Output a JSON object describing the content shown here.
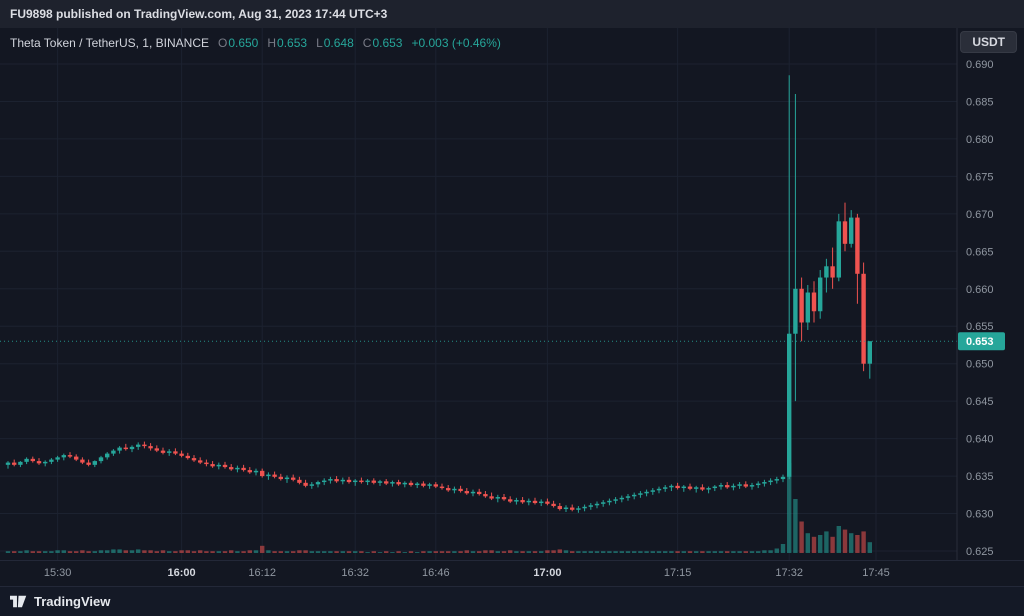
{
  "header": {
    "title": "FU9898 published on TradingView.com, Aug 31, 2023 17:44 UTC+3"
  },
  "legend": {
    "symbol": "Theta Token / TetherUS, 1, BINANCE",
    "ohlc": [
      {
        "label": "O",
        "value": "0.650"
      },
      {
        "label": "H",
        "value": "0.653"
      },
      {
        "label": "L",
        "value": "0.648"
      },
      {
        "label": "C",
        "value": "0.653"
      }
    ],
    "change": "+0.003 (+0.46%)"
  },
  "currency_button": "USDT",
  "footer": {
    "brand": "TradingView"
  },
  "colors": {
    "up": "#26a69a",
    "down": "#ef5350",
    "vol_up": "rgba(38,166,154,0.55)",
    "vol_down": "rgba(239,83,80,0.55)",
    "grid": "#1c2230",
    "axis_text": "#9097a1",
    "border": "#2a2e39",
    "last_price_bg": "#26a69a",
    "last_price_text": "#ffffff"
  },
  "chart_data": {
    "type": "candlestick",
    "title": "Theta Token / TetherUS, 1 minute, BINANCE",
    "interval": "1",
    "exchange": "BINANCE",
    "quote_currency": "USDT",
    "price_axis": {
      "min": 0.625,
      "max": 0.69,
      "step": 0.005
    },
    "price_ticks": [
      "0.690",
      "0.685",
      "0.680",
      "0.675",
      "0.670",
      "0.665",
      "0.660",
      "0.655",
      "0.650",
      "0.645",
      "0.640",
      "0.635",
      "0.630",
      "0.625"
    ],
    "last_price": {
      "value": "0.653",
      "price": 0.653
    },
    "time_labels": [
      {
        "text": "15:30",
        "idx": 8,
        "major": false
      },
      {
        "text": "16:00",
        "idx": 28,
        "major": true
      },
      {
        "text": "16:12",
        "idx": 41,
        "major": false
      },
      {
        "text": "16:32",
        "idx": 56,
        "major": false
      },
      {
        "text": "16:46",
        "idx": 69,
        "major": false
      },
      {
        "text": "17:00",
        "idx": 87,
        "major": true
      },
      {
        "text": "17:15",
        "idx": 108,
        "major": false
      },
      {
        "text": "17:32",
        "idx": 126,
        "major": false
      },
      {
        "text": "17:45",
        "idx": 140,
        "major": false
      }
    ],
    "candle_fields": [
      "open",
      "high",
      "low",
      "close",
      "volume_rel"
    ],
    "candles": [
      [
        0.6365,
        0.637,
        0.636,
        0.6368,
        2
      ],
      [
        0.6368,
        0.6372,
        0.6363,
        0.6365,
        2
      ],
      [
        0.6365,
        0.637,
        0.6362,
        0.6369,
        2
      ],
      [
        0.6369,
        0.6375,
        0.6366,
        0.6373,
        3
      ],
      [
        0.6373,
        0.6376,
        0.6368,
        0.637,
        2
      ],
      [
        0.637,
        0.6374,
        0.6365,
        0.6367,
        2
      ],
      [
        0.6367,
        0.6371,
        0.6363,
        0.6369,
        2
      ],
      [
        0.6369,
        0.6374,
        0.6366,
        0.6372,
        2
      ],
      [
        0.6372,
        0.6377,
        0.6369,
        0.6375,
        3
      ],
      [
        0.6375,
        0.638,
        0.6371,
        0.6378,
        3
      ],
      [
        0.6378,
        0.6382,
        0.6374,
        0.6376,
        2
      ],
      [
        0.6376,
        0.6379,
        0.637,
        0.6372,
        2
      ],
      [
        0.6372,
        0.6375,
        0.6366,
        0.6368,
        3
      ],
      [
        0.6368,
        0.6372,
        0.6363,
        0.6365,
        2
      ],
      [
        0.6365,
        0.6371,
        0.6362,
        0.637,
        2
      ],
      [
        0.637,
        0.6377,
        0.6367,
        0.6375,
        3
      ],
      [
        0.6375,
        0.6382,
        0.6372,
        0.638,
        3
      ],
      [
        0.638,
        0.6386,
        0.6377,
        0.6384,
        4
      ],
      [
        0.6384,
        0.639,
        0.638,
        0.6388,
        4
      ],
      [
        0.6388,
        0.6393,
        0.6384,
        0.6386,
        3
      ],
      [
        0.6386,
        0.6391,
        0.6382,
        0.6389,
        3
      ],
      [
        0.6389,
        0.6395,
        0.6385,
        0.6392,
        4
      ],
      [
        0.6392,
        0.6396,
        0.6387,
        0.639,
        3
      ],
      [
        0.639,
        0.6394,
        0.6384,
        0.6387,
        3
      ],
      [
        0.6387,
        0.6391,
        0.6382,
        0.6384,
        2
      ],
      [
        0.6384,
        0.6388,
        0.6379,
        0.6381,
        3
      ],
      [
        0.6381,
        0.6386,
        0.6377,
        0.6383,
        2
      ],
      [
        0.6383,
        0.6387,
        0.6378,
        0.638,
        2
      ],
      [
        0.638,
        0.6384,
        0.6375,
        0.6377,
        3
      ],
      [
        0.6377,
        0.6381,
        0.6372,
        0.6374,
        3
      ],
      [
        0.6374,
        0.6378,
        0.6369,
        0.6371,
        2
      ],
      [
        0.6371,
        0.6375,
        0.6366,
        0.6368,
        3
      ],
      [
        0.6368,
        0.6372,
        0.6363,
        0.6366,
        2
      ],
      [
        0.6366,
        0.637,
        0.6361,
        0.6363,
        2
      ],
      [
        0.6363,
        0.6368,
        0.6359,
        0.6365,
        2
      ],
      [
        0.6365,
        0.6369,
        0.636,
        0.6362,
        2
      ],
      [
        0.6362,
        0.6366,
        0.6357,
        0.6359,
        3
      ],
      [
        0.6359,
        0.6364,
        0.6355,
        0.6361,
        2
      ],
      [
        0.6361,
        0.6365,
        0.6356,
        0.6358,
        2
      ],
      [
        0.6358,
        0.6362,
        0.6353,
        0.6355,
        3
      ],
      [
        0.6355,
        0.636,
        0.6351,
        0.6357,
        3
      ],
      [
        0.6357,
        0.636,
        0.6348,
        0.635,
        8
      ],
      [
        0.635,
        0.6355,
        0.6345,
        0.6352,
        3
      ],
      [
        0.6352,
        0.6356,
        0.6347,
        0.6349,
        2
      ],
      [
        0.6349,
        0.6353,
        0.6344,
        0.6346,
        2
      ],
      [
        0.6346,
        0.6351,
        0.6341,
        0.6348,
        2
      ],
      [
        0.6348,
        0.6352,
        0.6343,
        0.6345,
        2
      ],
      [
        0.6345,
        0.6349,
        0.6339,
        0.6341,
        3
      ],
      [
        0.6341,
        0.6345,
        0.6335,
        0.6337,
        3
      ],
      [
        0.6337,
        0.6342,
        0.6333,
        0.6339,
        2
      ],
      [
        0.6339,
        0.6344,
        0.6335,
        0.6342,
        2
      ],
      [
        0.6342,
        0.6347,
        0.6338,
        0.6344,
        2
      ],
      [
        0.6344,
        0.6349,
        0.634,
        0.6346,
        2
      ],
      [
        0.6346,
        0.635,
        0.6341,
        0.6343,
        2
      ],
      [
        0.6343,
        0.6348,
        0.6339,
        0.6345,
        2
      ],
      [
        0.6345,
        0.6349,
        0.634,
        0.6342,
        2
      ],
      [
        0.6342,
        0.6346,
        0.6337,
        0.6344,
        2
      ],
      [
        0.6344,
        0.6348,
        0.634,
        0.6342,
        2
      ],
      [
        0.6342,
        0.6346,
        0.6338,
        0.6344,
        1
      ],
      [
        0.6344,
        0.6347,
        0.6339,
        0.6341,
        2
      ],
      [
        0.6341,
        0.6345,
        0.6337,
        0.6343,
        1
      ],
      [
        0.6343,
        0.6346,
        0.6338,
        0.634,
        2
      ],
      [
        0.634,
        0.6344,
        0.6336,
        0.6342,
        1
      ],
      [
        0.6342,
        0.6345,
        0.6337,
        0.6339,
        2
      ],
      [
        0.6339,
        0.6343,
        0.6335,
        0.6341,
        1
      ],
      [
        0.6341,
        0.6344,
        0.6336,
        0.6338,
        2
      ],
      [
        0.6338,
        0.6342,
        0.6334,
        0.634,
        1
      ],
      [
        0.634,
        0.6343,
        0.6335,
        0.6337,
        2
      ],
      [
        0.6337,
        0.6341,
        0.6333,
        0.6339,
        2
      ],
      [
        0.6339,
        0.6342,
        0.6334,
        0.6336,
        2
      ],
      [
        0.6336,
        0.634,
        0.6332,
        0.6334,
        2
      ],
      [
        0.6334,
        0.6338,
        0.6329,
        0.6331,
        2
      ],
      [
        0.6331,
        0.6336,
        0.6327,
        0.6333,
        2
      ],
      [
        0.6333,
        0.6337,
        0.6328,
        0.633,
        2
      ],
      [
        0.633,
        0.6334,
        0.6325,
        0.6327,
        3
      ],
      [
        0.6327,
        0.6332,
        0.6323,
        0.6329,
        2
      ],
      [
        0.6329,
        0.6333,
        0.6324,
        0.6326,
        2
      ],
      [
        0.6326,
        0.633,
        0.6321,
        0.6323,
        3
      ],
      [
        0.6323,
        0.6328,
        0.6318,
        0.632,
        3
      ],
      [
        0.632,
        0.6325,
        0.6315,
        0.6322,
        2
      ],
      [
        0.6322,
        0.6326,
        0.6317,
        0.6319,
        2
      ],
      [
        0.6319,
        0.6323,
        0.6314,
        0.6316,
        3
      ],
      [
        0.6316,
        0.6321,
        0.6312,
        0.6318,
        2
      ],
      [
        0.6318,
        0.6322,
        0.6313,
        0.6315,
        2
      ],
      [
        0.6315,
        0.632,
        0.6311,
        0.6317,
        2
      ],
      [
        0.6317,
        0.6321,
        0.6312,
        0.6314,
        2
      ],
      [
        0.6314,
        0.6319,
        0.631,
        0.6316,
        2
      ],
      [
        0.6316,
        0.632,
        0.6311,
        0.6313,
        3
      ],
      [
        0.6313,
        0.6317,
        0.6308,
        0.631,
        3
      ],
      [
        0.631,
        0.6314,
        0.6304,
        0.6306,
        4
      ],
      [
        0.6306,
        0.6311,
        0.6302,
        0.6308,
        3
      ],
      [
        0.6308,
        0.6312,
        0.6303,
        0.6305,
        2
      ],
      [
        0.6305,
        0.631,
        0.6301,
        0.6307,
        2
      ],
      [
        0.6307,
        0.6312,
        0.6303,
        0.6309,
        2
      ],
      [
        0.6309,
        0.6314,
        0.6305,
        0.6311,
        2
      ],
      [
        0.6311,
        0.6316,
        0.6307,
        0.6313,
        2
      ],
      [
        0.6313,
        0.6318,
        0.6309,
        0.6315,
        2
      ],
      [
        0.6315,
        0.632,
        0.6311,
        0.6317,
        2
      ],
      [
        0.6317,
        0.6322,
        0.6313,
        0.6319,
        2
      ],
      [
        0.6319,
        0.6324,
        0.6315,
        0.6321,
        2
      ],
      [
        0.6321,
        0.6326,
        0.6317,
        0.6323,
        2
      ],
      [
        0.6323,
        0.6328,
        0.6319,
        0.6325,
        2
      ],
      [
        0.6325,
        0.633,
        0.6321,
        0.6327,
        2
      ],
      [
        0.6327,
        0.6332,
        0.6323,
        0.6329,
        2
      ],
      [
        0.6329,
        0.6334,
        0.6325,
        0.6331,
        2
      ],
      [
        0.6331,
        0.6336,
        0.6327,
        0.6333,
        2
      ],
      [
        0.6333,
        0.6338,
        0.6329,
        0.6335,
        2
      ],
      [
        0.6335,
        0.6339,
        0.633,
        0.6337,
        2
      ],
      [
        0.6337,
        0.6341,
        0.6332,
        0.6334,
        2
      ],
      [
        0.6334,
        0.6338,
        0.6329,
        0.6336,
        2
      ],
      [
        0.6336,
        0.634,
        0.6331,
        0.6333,
        2
      ],
      [
        0.6333,
        0.6337,
        0.6328,
        0.6335,
        2
      ],
      [
        0.6335,
        0.6339,
        0.633,
        0.6332,
        2
      ],
      [
        0.6332,
        0.6336,
        0.6327,
        0.6334,
        2
      ],
      [
        0.6334,
        0.6338,
        0.633,
        0.6336,
        2
      ],
      [
        0.6336,
        0.6341,
        0.6332,
        0.6338,
        2
      ],
      [
        0.6338,
        0.6342,
        0.6333,
        0.6335,
        2
      ],
      [
        0.6335,
        0.634,
        0.6331,
        0.6337,
        2
      ],
      [
        0.6337,
        0.6342,
        0.6333,
        0.6339,
        2
      ],
      [
        0.6339,
        0.6343,
        0.6334,
        0.6336,
        2
      ],
      [
        0.6336,
        0.6341,
        0.6332,
        0.6338,
        2
      ],
      [
        0.6338,
        0.6343,
        0.6334,
        0.634,
        2
      ],
      [
        0.634,
        0.6345,
        0.6336,
        0.6342,
        3
      ],
      [
        0.6342,
        0.6347,
        0.6338,
        0.6344,
        3
      ],
      [
        0.6344,
        0.6349,
        0.634,
        0.6346,
        5
      ],
      [
        0.6346,
        0.6352,
        0.6342,
        0.6349,
        10
      ],
      [
        0.6349,
        0.6885,
        0.6346,
        0.654,
        100
      ],
      [
        0.654,
        0.686,
        0.645,
        0.66,
        60
      ],
      [
        0.66,
        0.6615,
        0.653,
        0.6555,
        35
      ],
      [
        0.6555,
        0.6605,
        0.6545,
        0.6595,
        22
      ],
      [
        0.6595,
        0.661,
        0.6555,
        0.657,
        18
      ],
      [
        0.657,
        0.6625,
        0.656,
        0.6615,
        20
      ],
      [
        0.6615,
        0.664,
        0.6595,
        0.663,
        24
      ],
      [
        0.663,
        0.6655,
        0.66,
        0.6615,
        18
      ],
      [
        0.6615,
        0.67,
        0.661,
        0.669,
        30
      ],
      [
        0.669,
        0.6715,
        0.665,
        0.666,
        26
      ],
      [
        0.666,
        0.6705,
        0.6655,
        0.6695,
        22
      ],
      [
        0.6695,
        0.67,
        0.658,
        0.662,
        20
      ],
      [
        0.662,
        0.6635,
        0.649,
        0.65,
        24
      ],
      [
        0.65,
        0.653,
        0.648,
        0.653,
        12
      ]
    ]
  }
}
